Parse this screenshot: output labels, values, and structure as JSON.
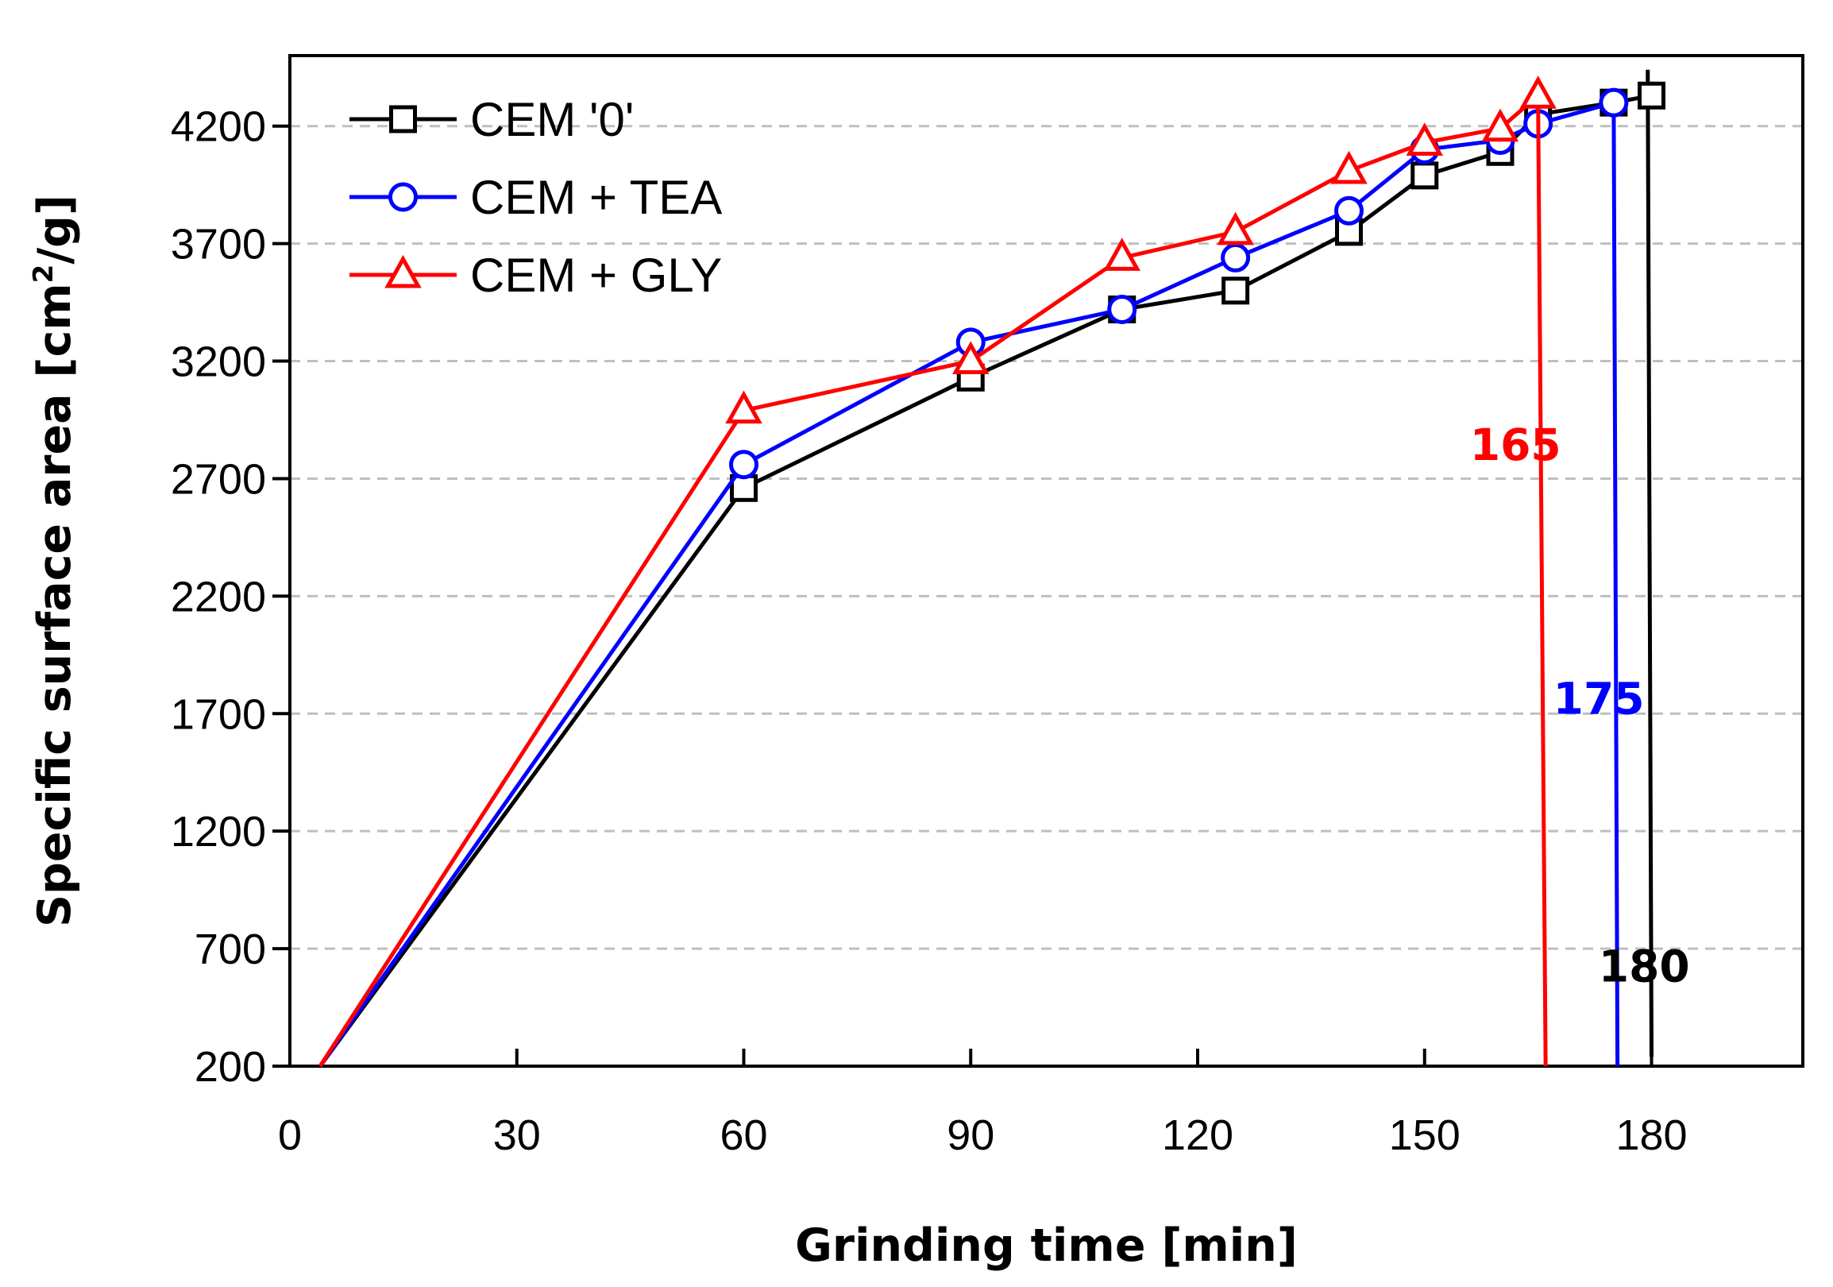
{
  "chart_data": {
    "type": "line",
    "title": "",
    "xlabel": "Grinding time [min]",
    "ylabel_main": "Specific surface area [cm",
    "ylabel_sup": "2",
    "ylabel_end": "/g]",
    "xlim": [
      0,
      200
    ],
    "ylim": [
      200,
      4500
    ],
    "xticks": [
      0,
      30,
      60,
      90,
      120,
      150,
      180
    ],
    "yticks": [
      200,
      700,
      1200,
      1700,
      2200,
      2700,
      3200,
      3700,
      4200
    ],
    "grid": "horizontal-dashed",
    "legend_position": "top-left",
    "series": [
      {
        "name": "CEM '0'",
        "color": "#000000",
        "marker": "square",
        "x": [
          4,
          60,
          90,
          110,
          125,
          140,
          150,
          160,
          165,
          175,
          180
        ],
        "y": [
          200,
          2660,
          3130,
          3420,
          3500,
          3750,
          3990,
          4090,
          4250,
          4300,
          4330
        ],
        "drop_x": [
          179.5,
          180
        ],
        "drop_y": [
          4440,
          240
        ],
        "label": "180",
        "label_x": 173,
        "label_y": 560
      },
      {
        "name": "CEM + TEA",
        "color": "#0000ff",
        "marker": "circle",
        "x": [
          4,
          60,
          90,
          110,
          125,
          140,
          150,
          160,
          165,
          175
        ],
        "y": [
          200,
          2760,
          3280,
          3420,
          3640,
          3840,
          4100,
          4140,
          4210,
          4300
        ],
        "drop_x": [
          175,
          175.5
        ],
        "drop_y": [
          4300,
          200
        ],
        "label": "175",
        "label_x": 167,
        "label_y": 1700
      },
      {
        "name": "CEM + GLY",
        "color": "#ff0000",
        "marker": "triangle",
        "x": [
          4,
          60,
          90,
          110,
          125,
          140,
          150,
          160,
          165
        ],
        "y": [
          200,
          2990,
          3200,
          3640,
          3750,
          4010,
          4130,
          4190,
          4330
        ],
        "drop_x": [
          165,
          166
        ],
        "drop_y": [
          4330,
          200
        ],
        "label": "165",
        "label_x": 156,
        "label_y": 2780
      }
    ]
  }
}
